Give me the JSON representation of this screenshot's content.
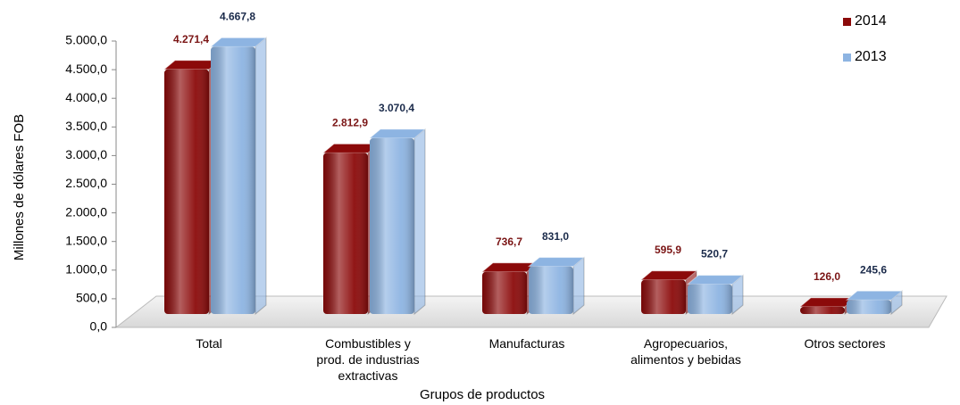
{
  "chart_data": {
    "type": "bar3d",
    "x_label": "Grupos de productos",
    "y_label": "Millones de dólares FOB",
    "categories": [
      [
        "Total"
      ],
      [
        "Combustibles y",
        "prod. de industrias",
        "extractivas"
      ],
      [
        "Manufacturas"
      ],
      [
        "Agropecuarios,",
        "alimentos y bebidas"
      ],
      [
        "Otros sectores"
      ]
    ],
    "series": [
      {
        "name": "2014",
        "color": "#8b0a0a",
        "label_color": "#7a1414",
        "values": [
          4271.4,
          2812.9,
          736.7,
          595.9,
          126.0
        ],
        "value_labels": [
          "4.271,4",
          "2.812,9",
          "736,7",
          "595,9",
          "126,0"
        ]
      },
      {
        "name": "2013",
        "color": "#8db4e2",
        "label_color": "#1a2a4a",
        "values": [
          4667.8,
          3070.4,
          831.0,
          520.7,
          245.6
        ],
        "value_labels": [
          "4.667,8",
          "3.070,4",
          "831,0",
          "520,7",
          "245,6"
        ]
      }
    ],
    "ylim": [
      0,
      5000
    ],
    "yticks": [
      {
        "value": 0,
        "label": "0,0"
      },
      {
        "value": 500,
        "label": "500,0"
      },
      {
        "value": 1000,
        "label": "1.000,0"
      },
      {
        "value": 1500,
        "label": "1.500,0"
      },
      {
        "value": 2000,
        "label": "2.000,0"
      },
      {
        "value": 2500,
        "label": "2.500,0"
      },
      {
        "value": 3000,
        "label": "3.000,0"
      },
      {
        "value": 3500,
        "label": "3.500,0"
      },
      {
        "value": 4000,
        "label": "4.000,0"
      },
      {
        "value": 4500,
        "label": "4.500,0"
      },
      {
        "value": 5000,
        "label": "5.000,0"
      }
    ],
    "legend": "top-right"
  }
}
